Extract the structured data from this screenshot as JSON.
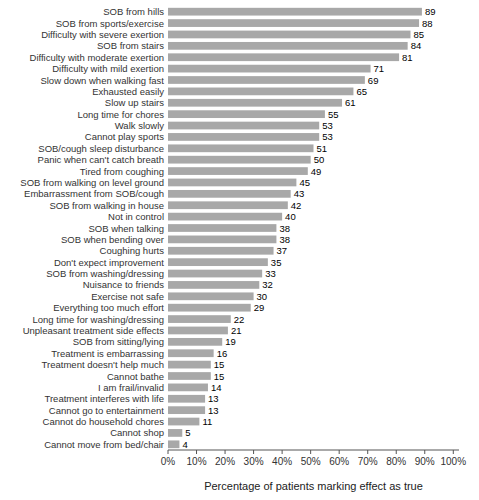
{
  "chart_data": {
    "type": "bar",
    "orientation": "horizontal",
    "categories": [
      "SOB from hills",
      "SOB from sports/exercise",
      "Difficulty with severe exertion",
      "SOB from stairs",
      "Difficulty with moderate exertion",
      "Difficulty with mild exertion",
      "Slow down when walking fast",
      "Exhausted easily",
      "Slow up stairs",
      "Long time for chores",
      "Walk slowly",
      "Cannot play sports",
      "SOB/cough sleep disturbance",
      "Panic when can't catch breath",
      "Tired from coughing",
      "SOB from walking on level ground",
      "Embarrassment from SOB/cough",
      "SOB from walking in house",
      "Not in control",
      "SOB when talking",
      "SOB when bending over",
      "Coughing hurts",
      "Don't expect improvement",
      "SOB from washing/dressing",
      "Nuisance to friends",
      "Exercise not safe",
      "Everything too much effort",
      "Long time for washing/dressing",
      "Unpleasant treatment side effects",
      "SOB from sitting/lying",
      "Treatment is embarrassing",
      "Treatment doesn't help much",
      "Cannot bathe",
      "I am frail/invalid",
      "Treatment interferes with life",
      "Cannot go to entertainment",
      "Cannot do household chores",
      "Cannot shop",
      "Cannot move from bed/chair"
    ],
    "values": [
      89,
      88,
      85,
      84,
      81,
      71,
      69,
      65,
      61,
      55,
      53,
      53,
      51,
      50,
      49,
      45,
      43,
      42,
      40,
      38,
      38,
      37,
      35,
      33,
      32,
      30,
      29,
      22,
      21,
      19,
      16,
      15,
      15,
      14,
      13,
      13,
      11,
      5,
      4
    ],
    "color": "#a8a8a8",
    "xlabel": "Percentage of patients marking effect as true",
    "xlim": [
      0,
      102
    ],
    "xticks": [
      {
        "value": 0,
        "label": "0%"
      },
      {
        "value": 10,
        "label": "10%"
      },
      {
        "value": 20,
        "label": "20%"
      },
      {
        "value": 30,
        "label": "30%"
      },
      {
        "value": 40,
        "label": "40%"
      },
      {
        "value": 50,
        "label": "50%"
      },
      {
        "value": 60,
        "label": "60%"
      },
      {
        "value": 70,
        "label": "70%"
      },
      {
        "value": 80,
        "label": "80%"
      },
      {
        "value": 90,
        "label": "90%"
      },
      {
        "value": 100,
        "label": "100%"
      }
    ],
    "data_labels": true,
    "grid": false
  }
}
